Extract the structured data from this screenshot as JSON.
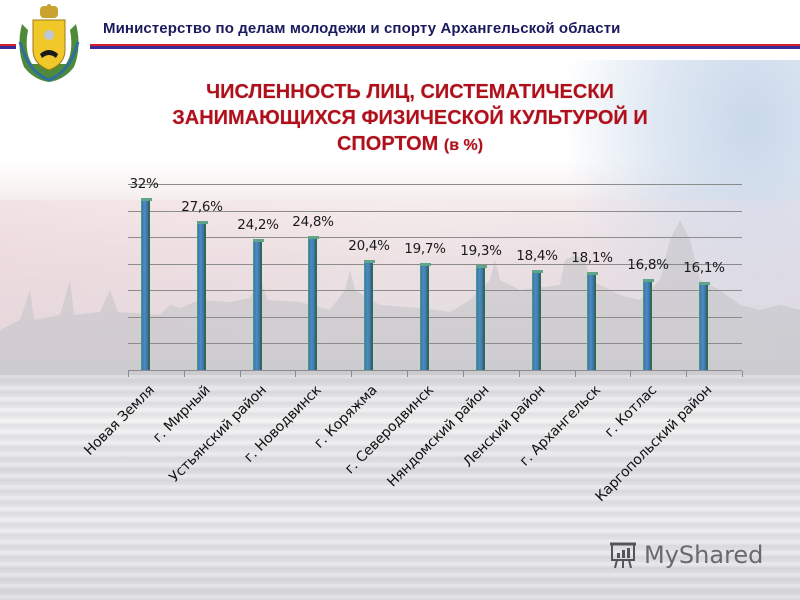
{
  "header": {
    "organization": "Министерство по делам молодежи и спорту  Архангельской области",
    "emblem_icon": "coat-of-arms-icon"
  },
  "title": {
    "line1": "ЧИСЛЕННОСТЬ ЛИЦ, СИСТЕМАТИЧЕСКИ",
    "line2": "ЗАНИМАЮЩИХСЯ ФИЗИЧЕСКОЙ КУЛЬТУРОЙ И",
    "line3_main": "СПОРТОМ",
    "line3_unit": "(в %)"
  },
  "colors": {
    "title_red": "#b0101c",
    "header_navy": "#1a1a5e",
    "bar_blue": "#4a80b8",
    "stripe_red": "#d0202a",
    "stripe_blue": "#3a2a9a"
  },
  "watermark": {
    "text": "MyShared",
    "icon": "presentation-board-icon"
  },
  "chart_data": {
    "type": "bar",
    "title": "ЧИСЛЕННОСТЬ ЛИЦ, СИСТЕМАТИЧЕСКИ ЗАНИМАЮЩИХСЯ ФИЗИЧЕСКОЙ КУЛЬТУРОЙ И СПОРТОМ (в %)",
    "xlabel": "",
    "ylabel": "",
    "ylim": [
      0,
      35
    ],
    "grid": true,
    "legend": "none",
    "categories": [
      "Новая Земля",
      "г. Мирный",
      "Устьянский район",
      "г. Новодвинск",
      "г. Коряжма",
      "г. Северодвинск",
      "Няндомский район",
      "Ленский район",
      "г. Архангельск",
      "г. Котлас",
      "Каргопольский район"
    ],
    "values": [
      32,
      27.6,
      24.2,
      24.8,
      20.4,
      19.7,
      19.3,
      18.4,
      18.1,
      16.8,
      16.1
    ],
    "value_labels": [
      "32%",
      "27,6%",
      "24,2%",
      "24,8%",
      "20,4%",
      "19,7%",
      "19,3%",
      "18,4%",
      "18,1%",
      "16,8%",
      "16,1%"
    ]
  }
}
